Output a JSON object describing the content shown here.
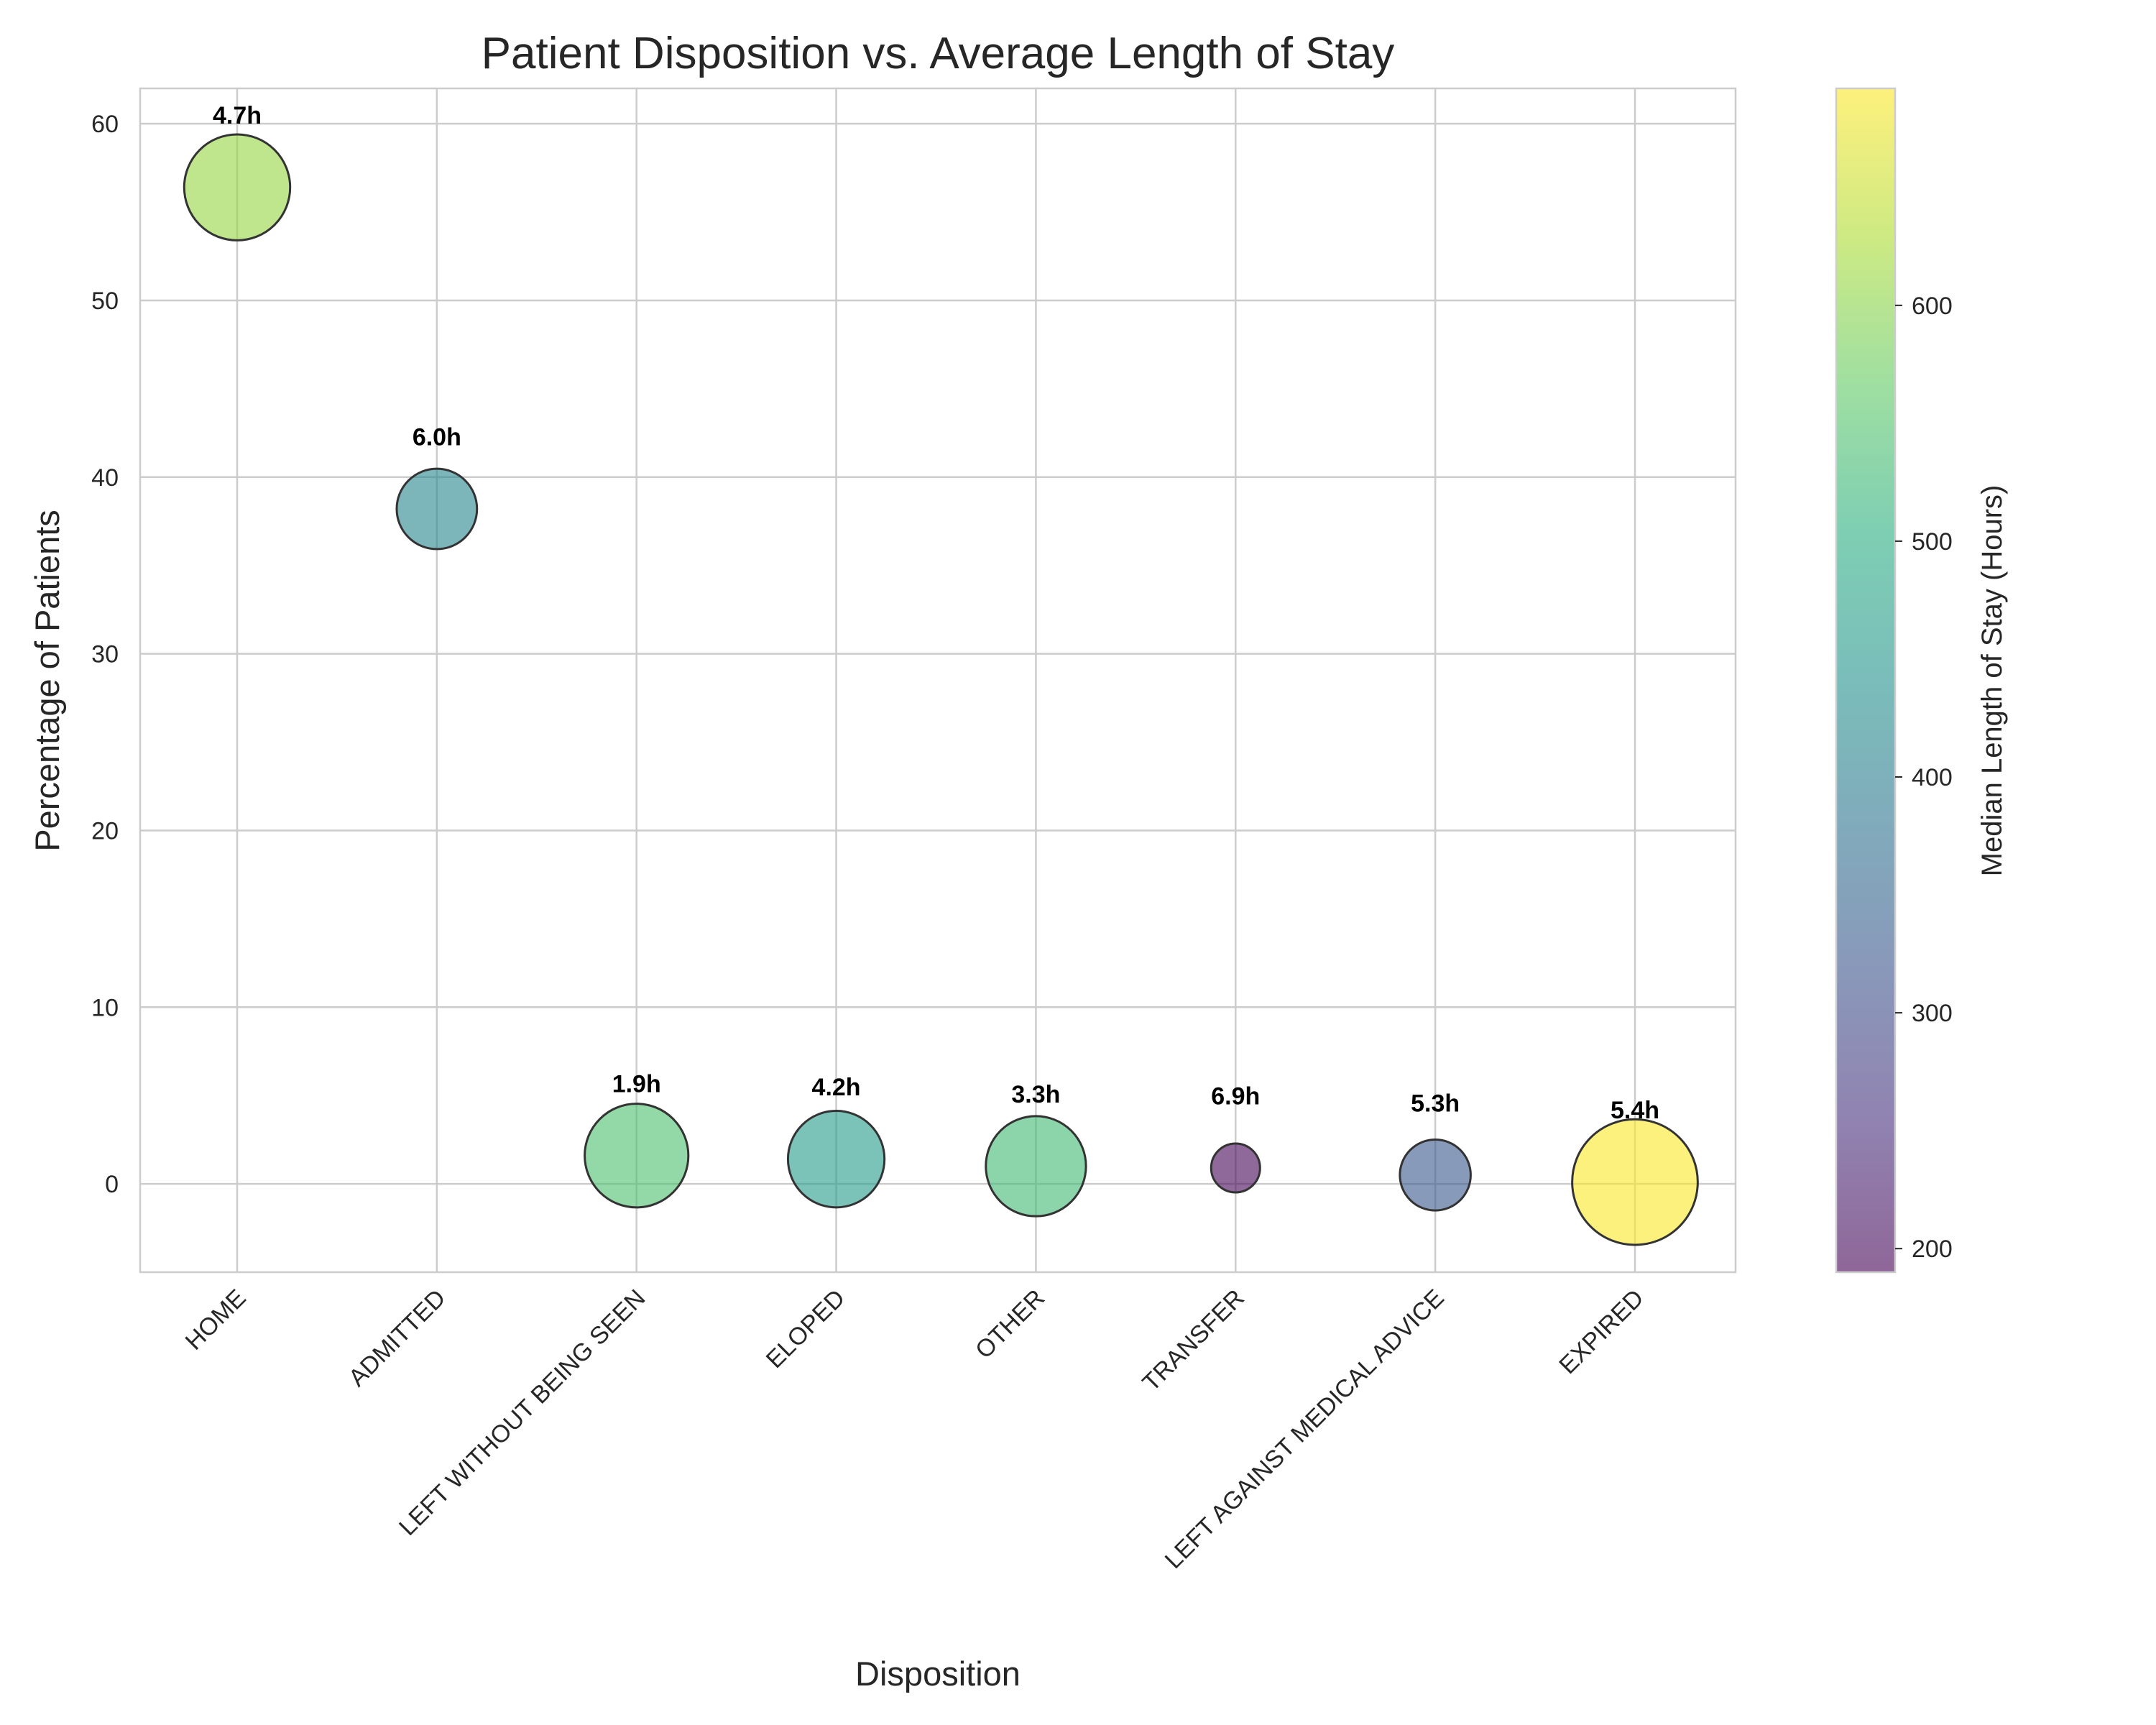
{
  "chart_data": {
    "type": "scatter",
    "title": "Patient Disposition vs. Average Length of Stay",
    "xlabel": "Disposition",
    "ylabel": "Percentage of Patients",
    "ylim": [
      -5,
      62
    ],
    "yticks": [
      0,
      10,
      20,
      30,
      40,
      50,
      60
    ],
    "grid": true,
    "categories": [
      "HOME",
      "ADMITTED",
      "LEFT WITHOUT BEING SEEN",
      "ELOPED",
      "OTHER",
      "TRANSFER",
      "LEFT AGAINST MEDICAL ADVICE",
      "EXPIRED"
    ],
    "points": [
      {
        "category": "HOME",
        "percentage": 56.4,
        "avg_los_label": "4.7h",
        "median_los_hours": 610,
        "bubble_size": 4.7
      },
      {
        "category": "ADMITTED",
        "percentage": 38.2,
        "avg_los_label": "6.0h",
        "median_los_hours": 418,
        "bubble_size": 2.7
      },
      {
        "category": "LEFT WITHOUT BEING SEEN",
        "percentage": 1.6,
        "avg_los_label": "1.9h",
        "median_los_hours": 545,
        "bubble_size": 4.5
      },
      {
        "category": "ELOPED",
        "percentage": 1.4,
        "avg_los_label": "4.2h",
        "median_los_hours": 462,
        "bubble_size": 3.9
      },
      {
        "category": "OTHER",
        "percentage": 1.0,
        "avg_los_label": "3.3h",
        "median_los_hours": 530,
        "bubble_size": 4.2
      },
      {
        "category": "TRANSFER",
        "percentage": 0.9,
        "avg_los_label": "6.9h",
        "median_los_hours": 195,
        "bubble_size": 1.0
      },
      {
        "category": "LEFT AGAINST MEDICAL ADVICE",
        "percentage": 0.5,
        "avg_los_label": "5.3h",
        "median_los_hours": 325,
        "bubble_size": 2.1
      },
      {
        "category": "EXPIRED",
        "percentage": 0.1,
        "avg_los_label": "5.4h",
        "median_los_hours": 690,
        "bubble_size": 6.6
      }
    ],
    "colorbar": {
      "label": "Median Length of Stay (Hours)",
      "colormap": "viridis",
      "range": [
        190,
        692
      ],
      "ticks": [
        200,
        300,
        400,
        500,
        600
      ]
    }
  }
}
